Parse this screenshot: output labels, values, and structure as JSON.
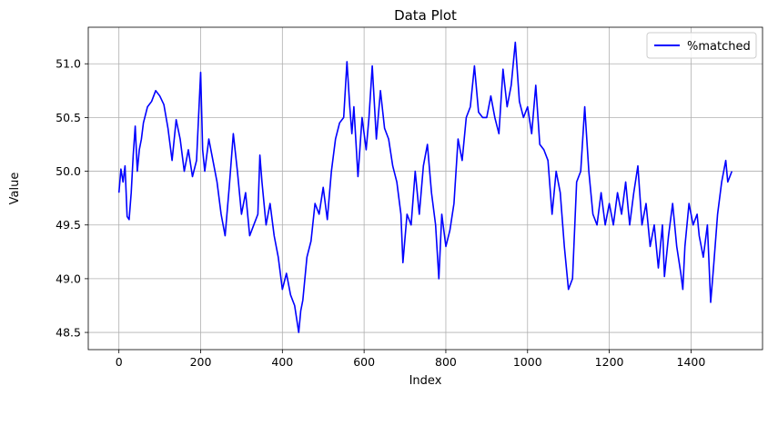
{
  "chart_data": {
    "type": "line",
    "title": "Data Plot",
    "xlabel": "Index",
    "ylabel": "Value",
    "xlim": [
      -75,
      1575
    ],
    "ylim": [
      48.34,
      51.34
    ],
    "xticks": [
      0,
      200,
      400,
      600,
      800,
      1000,
      1200,
      1400
    ],
    "yticks": [
      48.5,
      49.0,
      49.5,
      50.0,
      50.5,
      51.0
    ],
    "ytick_labels": [
      "48.5",
      "49.0",
      "49.5",
      "50.0",
      "50.5",
      "51.0"
    ],
    "grid": true,
    "legend_position": "top-right",
    "series": [
      {
        "name": "%matched",
        "color": "#0000ff",
        "points": [
          [
            0,
            49.8
          ],
          [
            5,
            50.02
          ],
          [
            10,
            49.9
          ],
          [
            15,
            50.05
          ],
          [
            20,
            49.58
          ],
          [
            25,
            49.55
          ],
          [
            30,
            49.8
          ],
          [
            35,
            50.15
          ],
          [
            40,
            50.42
          ],
          [
            45,
            50.0
          ],
          [
            50,
            50.2
          ],
          [
            55,
            50.3
          ],
          [
            60,
            50.45
          ],
          [
            70,
            50.6
          ],
          [
            80,
            50.65
          ],
          [
            90,
            50.75
          ],
          [
            100,
            50.7
          ],
          [
            110,
            50.62
          ],
          [
            120,
            50.4
          ],
          [
            130,
            50.1
          ],
          [
            140,
            50.48
          ],
          [
            150,
            50.3
          ],
          [
            160,
            50.0
          ],
          [
            170,
            50.2
          ],
          [
            180,
            49.95
          ],
          [
            190,
            50.1
          ],
          [
            200,
            50.92
          ],
          [
            205,
            50.2
          ],
          [
            210,
            50.0
          ],
          [
            220,
            50.3
          ],
          [
            230,
            50.1
          ],
          [
            240,
            49.9
          ],
          [
            250,
            49.6
          ],
          [
            260,
            49.4
          ],
          [
            270,
            49.85
          ],
          [
            280,
            50.35
          ],
          [
            290,
            50.0
          ],
          [
            300,
            49.6
          ],
          [
            310,
            49.8
          ],
          [
            320,
            49.4
          ],
          [
            330,
            49.5
          ],
          [
            340,
            49.6
          ],
          [
            345,
            50.15
          ],
          [
            350,
            49.9
          ],
          [
            360,
            49.5
          ],
          [
            370,
            49.7
          ],
          [
            380,
            49.4
          ],
          [
            390,
            49.2
          ],
          [
            400,
            48.9
          ],
          [
            410,
            49.05
          ],
          [
            420,
            48.85
          ],
          [
            430,
            48.75
          ],
          [
            440,
            48.5
          ],
          [
            445,
            48.7
          ],
          [
            450,
            48.8
          ],
          [
            460,
            49.2
          ],
          [
            470,
            49.35
          ],
          [
            480,
            49.7
          ],
          [
            490,
            49.6
          ],
          [
            500,
            49.85
          ],
          [
            510,
            49.55
          ],
          [
            520,
            50.0
          ],
          [
            530,
            50.3
          ],
          [
            540,
            50.45
          ],
          [
            550,
            50.5
          ],
          [
            558,
            51.02
          ],
          [
            565,
            50.6
          ],
          [
            570,
            50.35
          ],
          [
            575,
            50.6
          ],
          [
            585,
            49.95
          ],
          [
            595,
            50.5
          ],
          [
            605,
            50.2
          ],
          [
            612,
            50.5
          ],
          [
            620,
            50.98
          ],
          [
            630,
            50.3
          ],
          [
            640,
            50.75
          ],
          [
            650,
            50.4
          ],
          [
            660,
            50.3
          ],
          [
            670,
            50.05
          ],
          [
            680,
            49.9
          ],
          [
            690,
            49.6
          ],
          [
            695,
            49.15
          ],
          [
            705,
            49.6
          ],
          [
            715,
            49.5
          ],
          [
            725,
            50.0
          ],
          [
            735,
            49.6
          ],
          [
            745,
            50.05
          ],
          [
            755,
            50.25
          ],
          [
            765,
            49.8
          ],
          [
            775,
            49.5
          ],
          [
            783,
            49.0
          ],
          [
            790,
            49.6
          ],
          [
            800,
            49.3
          ],
          [
            810,
            49.45
          ],
          [
            820,
            49.7
          ],
          [
            830,
            50.3
          ],
          [
            840,
            50.1
          ],
          [
            850,
            50.5
          ],
          [
            860,
            50.6
          ],
          [
            870,
            50.98
          ],
          [
            880,
            50.55
          ],
          [
            890,
            50.5
          ],
          [
            900,
            50.5
          ],
          [
            910,
            50.7
          ],
          [
            920,
            50.5
          ],
          [
            930,
            50.35
          ],
          [
            940,
            50.95
          ],
          [
            950,
            50.6
          ],
          [
            960,
            50.8
          ],
          [
            970,
            51.2
          ],
          [
            980,
            50.65
          ],
          [
            990,
            50.5
          ],
          [
            1000,
            50.6
          ],
          [
            1010,
            50.35
          ],
          [
            1020,
            50.8
          ],
          [
            1030,
            50.25
          ],
          [
            1040,
            50.2
          ],
          [
            1050,
            50.1
          ],
          [
            1060,
            49.6
          ],
          [
            1070,
            50.0
          ],
          [
            1080,
            49.8
          ],
          [
            1090,
            49.3
          ],
          [
            1100,
            48.9
          ],
          [
            1110,
            49.0
          ],
          [
            1120,
            49.9
          ],
          [
            1130,
            50.0
          ],
          [
            1140,
            50.6
          ],
          [
            1150,
            50.0
          ],
          [
            1160,
            49.6
          ],
          [
            1170,
            49.5
          ],
          [
            1180,
            49.8
          ],
          [
            1190,
            49.5
          ],
          [
            1200,
            49.7
          ],
          [
            1210,
            49.5
          ],
          [
            1220,
            49.8
          ],
          [
            1230,
            49.6
          ],
          [
            1240,
            49.9
          ],
          [
            1250,
            49.5
          ],
          [
            1260,
            49.8
          ],
          [
            1270,
            50.05
          ],
          [
            1280,
            49.5
          ],
          [
            1290,
            49.7
          ],
          [
            1300,
            49.3
          ],
          [
            1310,
            49.5
          ],
          [
            1320,
            49.1
          ],
          [
            1330,
            49.5
          ],
          [
            1335,
            49.02
          ],
          [
            1345,
            49.4
          ],
          [
            1355,
            49.7
          ],
          [
            1365,
            49.3
          ],
          [
            1375,
            49.05
          ],
          [
            1380,
            48.9
          ],
          [
            1385,
            49.3
          ],
          [
            1395,
            49.7
          ],
          [
            1405,
            49.5
          ],
          [
            1415,
            49.6
          ],
          [
            1420,
            49.4
          ],
          [
            1430,
            49.2
          ],
          [
            1440,
            49.5
          ],
          [
            1448,
            48.78
          ],
          [
            1455,
            49.1
          ],
          [
            1465,
            49.6
          ],
          [
            1475,
            49.9
          ],
          [
            1485,
            50.1
          ],
          [
            1490,
            49.9
          ],
          [
            1500,
            50.0
          ]
        ]
      }
    ]
  }
}
